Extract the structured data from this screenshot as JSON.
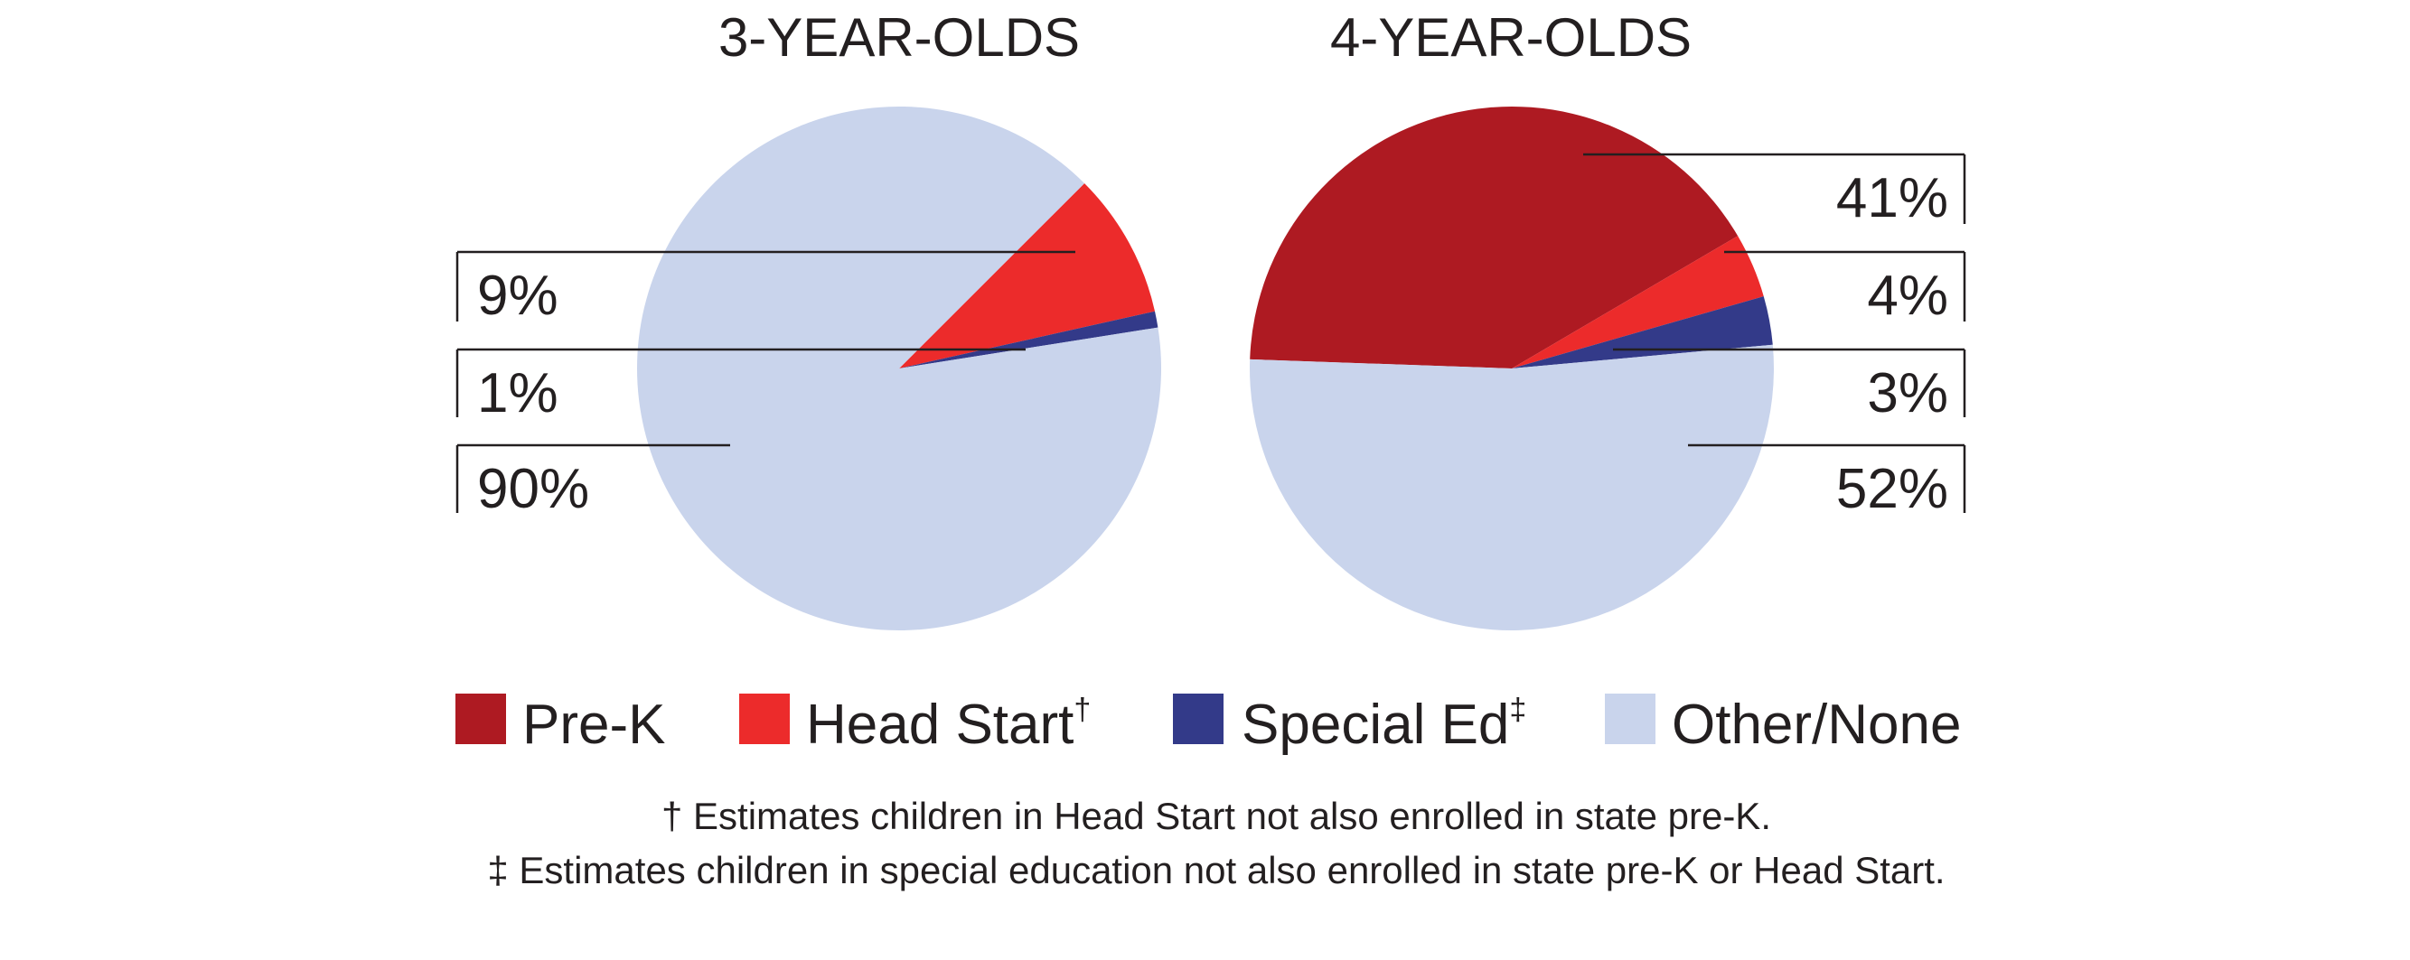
{
  "chart_data": [
    {
      "type": "pie",
      "title": "3-YEAR-OLDS",
      "categories": [
        "Pre-K",
        "Head Start",
        "Special Ed",
        "Other/None"
      ],
      "values": [
        0,
        9,
        1,
        90
      ],
      "labels": [
        "",
        "9%",
        "1%",
        "90%"
      ]
    },
    {
      "type": "pie",
      "title": "4-YEAR-OLDS",
      "categories": [
        "Pre-K",
        "Head Start",
        "Special Ed",
        "Other/None"
      ],
      "values": [
        41,
        4,
        3,
        52
      ],
      "labels": [
        "41%",
        "4%",
        "3%",
        "52%"
      ]
    }
  ],
  "legend": {
    "items": [
      {
        "label": "Pre-K",
        "sup": "",
        "color": "#ae1a22"
      },
      {
        "label": "Head Start",
        "sup": "†",
        "color": "#ec2b2b"
      },
      {
        "label": "Special Ed",
        "sup": "‡",
        "color": "#333a89"
      },
      {
        "label": "Other/None",
        "sup": "",
        "color": "#c9d4ec"
      }
    ]
  },
  "footnotes": [
    "† Estimates children in Head Start not also enrolled in state pre-K.",
    "‡ Estimates children in special education not also enrolled in state pre-K or Head Start."
  ]
}
